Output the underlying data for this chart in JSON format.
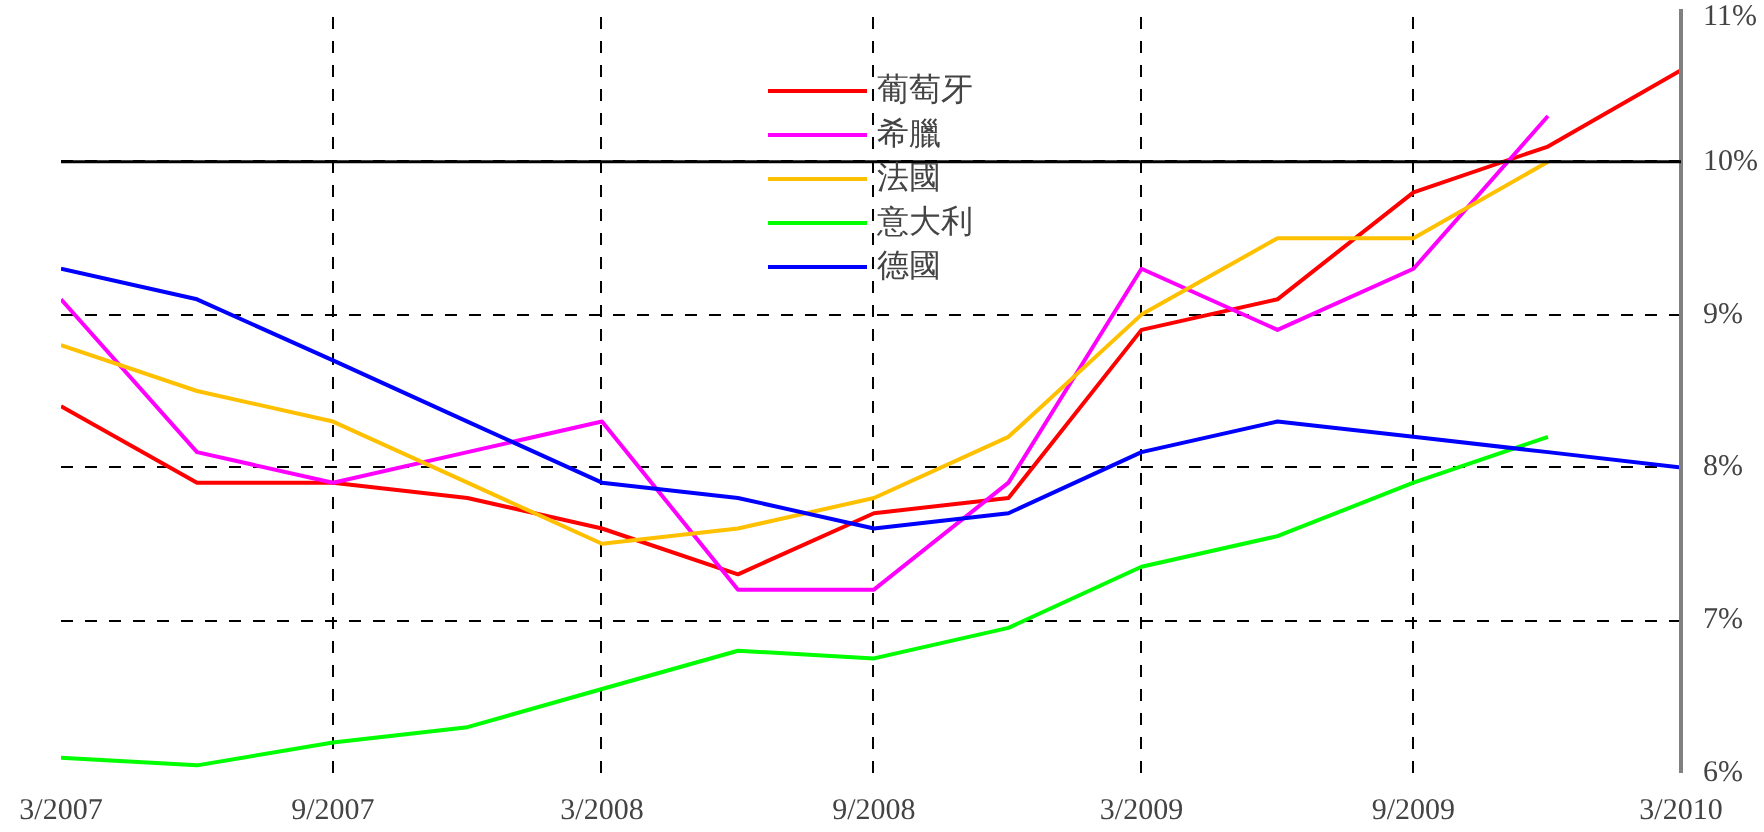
{
  "chart_data": {
    "type": "line",
    "x": [
      "2007-03",
      "2007-06",
      "2007-09",
      "2007-12",
      "2008-03",
      "2008-06",
      "2008-09",
      "2008-12",
      "2009-03",
      "2009-06",
      "2009-09",
      "2009-12",
      "2010-03"
    ],
    "series": [
      {
        "name": "葡萄牙",
        "color": "#ff0000",
        "values": [
          8.4,
          7.9,
          7.9,
          7.8,
          7.6,
          7.3,
          7.7,
          7.8,
          8.9,
          9.1,
          9.8,
          10.1,
          10.6
        ]
      },
      {
        "name": "希臘",
        "color": "#ff00ff",
        "values": [
          9.1,
          8.1,
          7.9,
          8.1,
          8.3,
          7.2,
          7.2,
          7.9,
          9.3,
          8.9,
          9.3,
          10.3,
          null
        ]
      },
      {
        "name": "法國",
        "color": "#ffc000",
        "values": [
          8.8,
          8.5,
          8.3,
          7.9,
          7.5,
          7.6,
          7.8,
          8.2,
          9.0,
          9.5,
          9.5,
          10.0,
          null
        ]
      },
      {
        "name": "意大利",
        "color": "#00ff00",
        "values": [
          6.1,
          6.05,
          6.2,
          6.3,
          6.55,
          6.8,
          6.75,
          6.95,
          7.35,
          7.55,
          7.9,
          8.2,
          null
        ]
      },
      {
        "name": "德國",
        "color": "#0000ff",
        "values": [
          9.3,
          9.1,
          8.7,
          8.3,
          7.9,
          7.8,
          7.6,
          7.7,
          8.1,
          8.3,
          8.2,
          8.1,
          8.0
        ]
      }
    ],
    "xlim": [
      "2007-03",
      "2010-03"
    ],
    "xticks": [
      {
        "value": "2007-03",
        "label": "3/2007"
      },
      {
        "value": "2007-09",
        "label": "9/2007"
      },
      {
        "value": "2008-03",
        "label": "3/2008"
      },
      {
        "value": "2008-09",
        "label": "9/2008"
      },
      {
        "value": "2009-03",
        "label": "3/2009"
      },
      {
        "value": "2009-09",
        "label": "9/2009"
      },
      {
        "value": "2010-03",
        "label": "3/2010"
      }
    ],
    "ylim": [
      6,
      11
    ],
    "yticks": [
      {
        "value": 6,
        "label": "6%"
      },
      {
        "value": 7,
        "label": "7%"
      },
      {
        "value": 8,
        "label": "8%"
      },
      {
        "value": 9,
        "label": "9%"
      },
      {
        "value": 10,
        "label": "10%"
      },
      {
        "value": 11,
        "label": "11%"
      }
    ],
    "ref_lines": [
      {
        "axis": "y",
        "value": 10,
        "color": "#000000",
        "line_style": "solid"
      }
    ],
    "grid": true,
    "legend": "top",
    "marker": "none",
    "line_style": "solid"
  }
}
